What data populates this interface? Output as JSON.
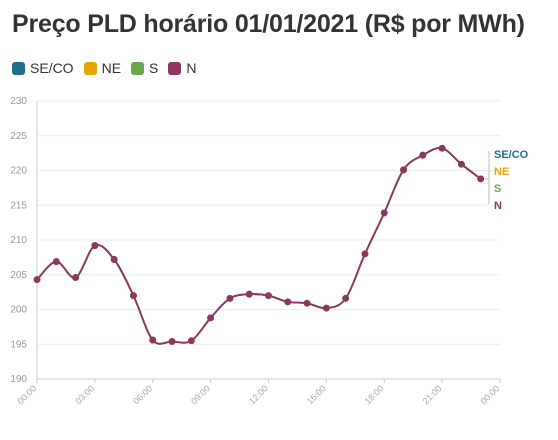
{
  "title": "Preço PLD horário 01/01/2021 (R$ por MWh)",
  "legend": [
    {
      "label": "SE/CO",
      "color": "#1f6e8c"
    },
    {
      "label": "NE",
      "color": "#e8a400"
    },
    {
      "label": "S",
      "color": "#6aa84f"
    },
    {
      "label": "N",
      "color": "#8e3566"
    }
  ],
  "chart_data": {
    "type": "line",
    "title": "Preço PLD horário 01/01/2021 (R$ por MWh)",
    "xlabel": "",
    "ylabel": "",
    "ylim": [
      190,
      230
    ],
    "yticks": [
      190,
      195,
      200,
      205,
      210,
      215,
      220,
      225,
      230
    ],
    "xticks": [
      "00:00",
      "03:00",
      "06:00",
      "09:00",
      "12:00",
      "15:00",
      "18:00",
      "21:00",
      "00:00"
    ],
    "x": [
      0,
      1,
      2,
      3,
      4,
      5,
      6,
      7,
      8,
      9,
      10,
      11,
      12,
      13,
      14,
      15,
      16,
      17,
      18,
      19,
      20,
      21,
      22,
      23
    ],
    "series": [
      {
        "name": "SE/CO",
        "color": "#1f6e8c",
        "values": [
          204.3,
          206.9,
          204.6,
          209.2,
          207.2,
          202.0,
          195.6,
          195.4,
          195.5,
          198.8,
          201.6,
          202.2,
          202.0,
          201.1,
          200.9,
          200.2,
          201.6,
          208.0,
          213.9,
          220.1,
          222.2,
          223.2,
          220.9,
          218.8
        ]
      },
      {
        "name": "NE",
        "color": "#e8a400",
        "values": [
          204.3,
          206.9,
          204.6,
          209.2,
          207.2,
          202.0,
          195.6,
          195.4,
          195.5,
          198.8,
          201.6,
          202.2,
          202.0,
          201.1,
          200.9,
          200.2,
          201.6,
          208.0,
          213.9,
          220.1,
          222.2,
          223.2,
          220.9,
          218.8
        ]
      },
      {
        "name": "S",
        "color": "#6aa84f",
        "values": [
          204.3,
          206.9,
          204.6,
          209.2,
          207.2,
          202.0,
          195.6,
          195.4,
          195.5,
          198.8,
          201.6,
          202.2,
          202.0,
          201.1,
          200.9,
          200.2,
          201.6,
          208.0,
          213.9,
          220.1,
          222.2,
          223.2,
          220.9,
          218.8
        ]
      },
      {
        "name": "N",
        "color": "#8e3566",
        "values": [
          204.3,
          206.9,
          204.6,
          209.2,
          207.2,
          202.0,
          195.6,
          195.4,
          195.5,
          198.8,
          201.6,
          202.2,
          202.0,
          201.1,
          200.9,
          200.2,
          201.6,
          208.0,
          213.9,
          220.1,
          222.2,
          223.2,
          220.9,
          218.8
        ]
      }
    ],
    "end_labels": [
      "SE/CO",
      "NE",
      "S",
      "N"
    ],
    "grid": true,
    "legend_position": "top-left"
  }
}
